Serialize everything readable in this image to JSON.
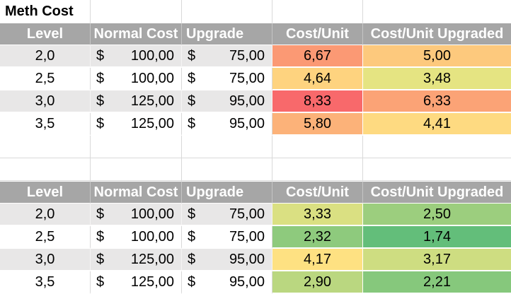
{
  "title": "Meth Cost",
  "currency": "$",
  "columns": {
    "level": "Level",
    "normal_cost": "Normal Cost",
    "upgrade": "Upgrade",
    "cost_unit": "Cost/Unit",
    "cost_unit_upgraded": "Cost/Unit Upgraded"
  },
  "colors": {
    "header_bg": "#A6A6A6",
    "header_text": "#FFFFFF",
    "stripe_bg": "#E8E7E7",
    "gridline": "#D9D9D9",
    "scale_red": "#F8696B",
    "scale_yellow": "#FFEB84",
    "scale_green": "#63BE7A"
  },
  "tables": [
    {
      "rows": [
        {
          "level": "2,0",
          "normal_cost": "100,00",
          "upgrade": "75,00",
          "cost_unit": "6,67",
          "cost_unit_bg": "#FB9974",
          "cost_unit_upgraded": "5,00",
          "cost_unit_upgraded_bg": "#FDC97D"
        },
        {
          "level": "2,5",
          "normal_cost": "100,00",
          "upgrade": "75,00",
          "cost_unit": "4,64",
          "cost_unit_bg": "#FED37F",
          "cost_unit_upgraded": "3,48",
          "cost_unit_upgraded_bg": "#E5E482"
        },
        {
          "level": "3,0",
          "normal_cost": "125,00",
          "upgrade": "95,00",
          "cost_unit": "8,33",
          "cost_unit_bg": "#F8696B",
          "cost_unit_upgraded": "6,33",
          "cost_unit_upgraded_bg": "#FBA376"
        },
        {
          "level": "3,5",
          "normal_cost": "125,00",
          "upgrade": "95,00",
          "cost_unit": "5,80",
          "cost_unit_bg": "#FCB279",
          "cost_unit_upgraded": "4,41",
          "cost_unit_upgraded_bg": "#FEDA81"
        }
      ]
    },
    {
      "rows": [
        {
          "level": "2,0",
          "normal_cost": "100,00",
          "upgrade": "75,00",
          "cost_unit": "3,33",
          "cost_unit_bg": "#DAE082",
          "cost_unit_upgraded": "2,50",
          "cost_unit_upgraded_bg": "#9CCE7E"
        },
        {
          "level": "2,5",
          "normal_cost": "100,00",
          "upgrade": "75,00",
          "cost_unit": "2,32",
          "cost_unit_bg": "#8ECA7D",
          "cost_unit_upgraded": "1,74",
          "cost_unit_upgraded_bg": "#63BE7A"
        },
        {
          "level": "3,0",
          "normal_cost": "125,00",
          "upgrade": "95,00",
          "cost_unit": "4,17",
          "cost_unit_bg": "#FEE182",
          "cost_unit_upgraded": "3,17",
          "cost_unit_upgraded_bg": "#CEDD81"
        },
        {
          "level": "3,5",
          "normal_cost": "125,00",
          "upgrade": "95,00",
          "cost_unit": "2,90",
          "cost_unit_bg": "#BAD780",
          "cost_unit_upgraded": "2,21",
          "cost_unit_upgraded_bg": "#86C87C"
        }
      ]
    }
  ]
}
